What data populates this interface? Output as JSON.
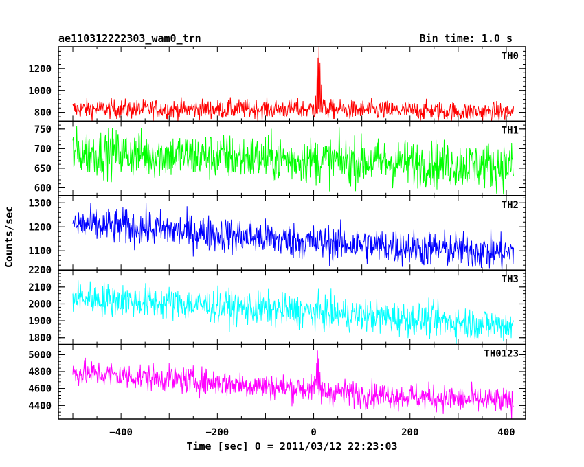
{
  "header": {
    "title": "ae110312222303_wam0_trn",
    "bin_time": "Bin time: 1.0 s"
  },
  "chart_data": {
    "type": "line",
    "title": "ae110312222303_wam0_trn",
    "subtitle": "Bin time: 1.0 s",
    "xlabel": "Time [sec] 0 = 2011/03/12 22:23:03",
    "ylabel": "Counts/sec",
    "xlim": [
      -530,
      440
    ],
    "x_range": [
      -500,
      415
    ],
    "x_ticks": [
      -400,
      -200,
      0,
      200,
      400
    ],
    "x_tick_labels": [
      "−400",
      "−200",
      "0",
      "200",
      "400"
    ],
    "panels": [
      {
        "label": "TH0",
        "color": "#ff0000",
        "ylim": [
          720,
          1400
        ],
        "y_ticks": [
          800,
          1000,
          1200
        ],
        "y_tick_labels": [
          "800",
          "1000",
          "1200"
        ],
        "trend": [
          [
            -500,
            830
          ],
          [
            0,
            830
          ],
          [
            415,
            800
          ]
        ],
        "noise": 45,
        "spikes": [
          [
            -10,
            840
          ],
          [
            0,
            870
          ],
          [
            4,
            950
          ],
          [
            7,
            1150
          ],
          [
            9,
            1300
          ],
          [
            11,
            1400
          ],
          [
            13,
            1250
          ],
          [
            16,
            1050
          ],
          [
            20,
            920
          ],
          [
            26,
            850
          ]
        ]
      },
      {
        "label": "TH1",
        "color": "#00ff00",
        "ylim": [
          580,
          770
        ],
        "y_ticks": [
          600,
          650,
          700,
          750
        ],
        "y_tick_labels": [
          "600",
          "650",
          "700",
          "750"
        ],
        "trend": [
          [
            -500,
            692
          ],
          [
            0,
            670
          ],
          [
            415,
            655
          ]
        ],
        "noise": 30,
        "spikes": []
      },
      {
        "label": "TH2",
        "color": "#0000ff",
        "ylim": [
          1020,
          1330
        ],
        "y_ticks": [
          1100,
          1200,
          1300
        ],
        "y_tick_labels": [
          "1100",
          "1200",
          "1300"
        ],
        "trend": [
          [
            -500,
            1210
          ],
          [
            -350,
            1195
          ],
          [
            0,
            1135
          ],
          [
            415,
            1090
          ]
        ],
        "noise": 38,
        "spikes": []
      },
      {
        "label": "TH3",
        "color": "#00ffff",
        "ylim": [
          1760,
          2200
        ],
        "y_ticks": [
          1800,
          1900,
          2000,
          2100,
          2200
        ],
        "y_tick_labels": [
          "1800",
          "1900",
          "2000",
          "2100",
          "2200"
        ],
        "trend": [
          [
            -500,
            2040
          ],
          [
            0,
            1950
          ],
          [
            415,
            1870
          ]
        ],
        "noise": 50,
        "spikes": []
      },
      {
        "label": "TH0123",
        "color": "#ff00ff",
        "ylim": [
          4240,
          5120
        ],
        "y_ticks": [
          4400,
          4600,
          4800,
          5000
        ],
        "y_tick_labels": [
          "4400",
          "4600",
          "4800",
          "5000"
        ],
        "trend": [
          [
            -500,
            4790
          ],
          [
            0,
            4590
          ],
          [
            20,
            4560
          ],
          [
            415,
            4440
          ]
        ],
        "noise": 80,
        "spikes": [
          [
            -2,
            4620
          ],
          [
            2,
            4750
          ],
          [
            6,
            4900
          ],
          [
            8,
            5050
          ],
          [
            10,
            4950
          ],
          [
            13,
            4800
          ],
          [
            17,
            4680
          ]
        ]
      }
    ]
  }
}
